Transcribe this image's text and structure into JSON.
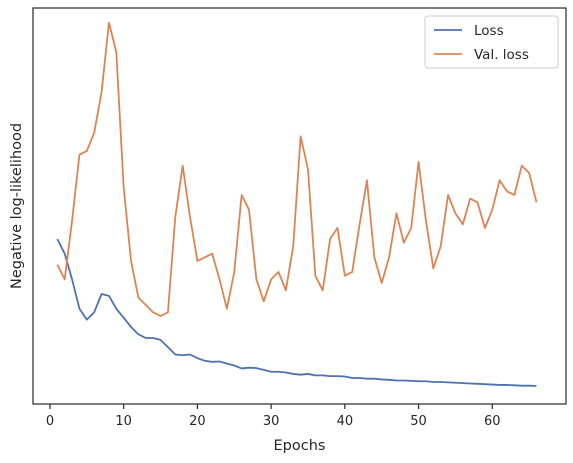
{
  "chart_data": {
    "type": "line",
    "xlabel": "Epochs",
    "ylabel": "Negative log-likelihood",
    "xlim": [
      -2.3,
      70.0
    ],
    "ylim": [
      -0.05,
      1.03
    ],
    "x_ticks": [
      0,
      10,
      20,
      30,
      40,
      50,
      60
    ],
    "y_tick_labels_shown": false,
    "grid": false,
    "legend_position": "upper right",
    "series": [
      {
        "name": "Loss",
        "color": "#4c72b0",
        "x": [
          1,
          2,
          3,
          4,
          5,
          6,
          7,
          8,
          9,
          10,
          11,
          12,
          13,
          14,
          15,
          16,
          17,
          18,
          19,
          20,
          21,
          22,
          23,
          24,
          25,
          26,
          27,
          28,
          29,
          30,
          31,
          32,
          33,
          34,
          35,
          36,
          37,
          38,
          39,
          40,
          41,
          42,
          43,
          44,
          45,
          46,
          47,
          48,
          49,
          50,
          51,
          52,
          53,
          54,
          55,
          56,
          57,
          58,
          59,
          60,
          61,
          62,
          63,
          64,
          65,
          66
        ],
        "values": [
          0.4,
          0.36,
          0.29,
          0.21,
          0.18,
          0.2,
          0.25,
          0.245,
          0.21,
          0.185,
          0.16,
          0.14,
          0.13,
          0.13,
          0.125,
          0.105,
          0.085,
          0.083,
          0.085,
          0.075,
          0.068,
          0.065,
          0.066,
          0.06,
          0.055,
          0.047,
          0.049,
          0.048,
          0.043,
          0.038,
          0.038,
          0.036,
          0.032,
          0.03,
          0.032,
          0.028,
          0.028,
          0.026,
          0.026,
          0.025,
          0.021,
          0.021,
          0.019,
          0.019,
          0.017,
          0.016,
          0.014,
          0.014,
          0.013,
          0.012,
          0.012,
          0.01,
          0.01,
          0.009,
          0.008,
          0.007,
          0.006,
          0.005,
          0.004,
          0.003,
          0.002,
          0.002,
          0.001,
          0.0,
          0.0,
          -0.001
        ]
      },
      {
        "name": "Val. loss",
        "color": "#dd8452",
        "x": [
          1,
          2,
          3,
          4,
          5,
          6,
          7,
          8,
          9,
          10,
          11,
          12,
          13,
          14,
          15,
          16,
          17,
          18,
          19,
          20,
          21,
          22,
          23,
          24,
          25,
          26,
          27,
          28,
          29,
          30,
          31,
          32,
          33,
          34,
          35,
          36,
          37,
          38,
          39,
          40,
          41,
          42,
          43,
          44,
          45,
          46,
          47,
          48,
          49,
          50,
          51,
          52,
          53,
          54,
          55,
          56,
          57,
          58,
          59,
          60,
          61,
          62,
          63,
          64,
          65,
          66
        ],
        "values": [
          0.33,
          0.29,
          0.45,
          0.63,
          0.64,
          0.69,
          0.8,
          0.99,
          0.91,
          0.54,
          0.34,
          0.24,
          0.22,
          0.2,
          0.19,
          0.2,
          0.46,
          0.6,
          0.46,
          0.34,
          0.35,
          0.36,
          0.29,
          0.21,
          0.31,
          0.52,
          0.48,
          0.29,
          0.23,
          0.29,
          0.31,
          0.26,
          0.38,
          0.68,
          0.59,
          0.3,
          0.26,
          0.4,
          0.43,
          0.3,
          0.31,
          0.44,
          0.56,
          0.35,
          0.28,
          0.35,
          0.47,
          0.39,
          0.43,
          0.61,
          0.45,
          0.32,
          0.38,
          0.52,
          0.47,
          0.44,
          0.51,
          0.5,
          0.43,
          0.48,
          0.56,
          0.53,
          0.52,
          0.6,
          0.58,
          0.5
        ]
      }
    ]
  }
}
